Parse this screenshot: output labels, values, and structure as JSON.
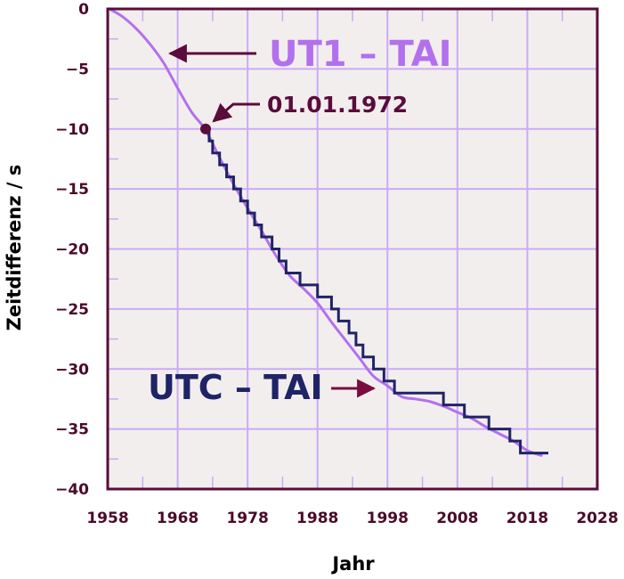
{
  "chart_data": {
    "type": "line",
    "title": "",
    "xlabel": "Jahr",
    "ylabel": "Zeitdifferenz / s",
    "xlim": [
      1958,
      2028
    ],
    "ylim": [
      -40,
      0
    ],
    "xticks": [
      1958,
      1968,
      1978,
      1988,
      1998,
      2008,
      2018,
      2028
    ],
    "yticks": [
      0,
      -5,
      -10,
      -15,
      -20,
      -25,
      -30,
      -35,
      -40
    ],
    "xtick_labels": [
      "1958",
      "1968",
      "1978",
      "1988",
      "1998",
      "2008",
      "2018",
      "2028"
    ],
    "ytick_labels": [
      "0",
      "−5",
      "−10",
      "−15",
      "−20",
      "−25",
      "−30",
      "−35",
      "−40"
    ],
    "grid": true,
    "series": [
      {
        "name": "UT1 – TAI",
        "color": "#b370ee",
        "style": "smooth",
        "x": [
          1958.2,
          1960,
          1962,
          1964,
          1966,
          1968,
          1970,
          1972,
          1974,
          1976,
          1978,
          1980,
          1982,
          1984,
          1986,
          1988,
          1990,
          1992,
          1994,
          1996,
          1998,
          2000,
          2002,
          2004,
          2006,
          2008,
          2010,
          2012,
          2014,
          2016,
          2018,
          2020
        ],
        "y": [
          0,
          -0.6,
          -1.6,
          -2.9,
          -4.5,
          -6.6,
          -8.6,
          -10.1,
          -12.4,
          -14.6,
          -16.6,
          -18.5,
          -20.5,
          -22.2,
          -23.3,
          -24.5,
          -26.1,
          -27.6,
          -29.1,
          -30.6,
          -31.4,
          -32.3,
          -32.5,
          -32.7,
          -33.1,
          -33.6,
          -34.1,
          -34.8,
          -35.4,
          -36.0,
          -36.8,
          -37.2
        ]
      },
      {
        "name": "UTC – TAI",
        "color": "#1e2466",
        "style": "step",
        "x": [
          1972.0,
          1972.5,
          1973.0,
          1974.0,
          1975.0,
          1976.0,
          1977.0,
          1978.0,
          1979.0,
          1980.0,
          1981.5,
          1982.5,
          1983.5,
          1985.5,
          1988.0,
          1990.0,
          1991.0,
          1992.5,
          1993.5,
          1994.5,
          1996.0,
          1997.5,
          1999.0,
          2006.0,
          2009.0,
          2012.5,
          2015.5,
          2017.0,
          2021.0
        ],
        "y": [
          -10,
          -11,
          -12,
          -13,
          -14,
          -15,
          -16,
          -17,
          -18,
          -19,
          -20,
          -21,
          -22,
          -23,
          -24,
          -25,
          -26,
          -27,
          -28,
          -29,
          -30,
          -31,
          -32,
          -33,
          -34,
          -35,
          -36,
          -37,
          -37
        ]
      }
    ],
    "marker": {
      "x": 1972.0,
      "y": -10,
      "color": "#5a0c3a"
    },
    "annotations": [
      {
        "text": "UT1 – TAI",
        "color": "#b370ee",
        "arrow_color": "#5a0c3a"
      },
      {
        "text": "01.01.1972",
        "color": "#5a0c3a",
        "arrow_color": "#5a0c3a"
      },
      {
        "text": "UTC – TAI",
        "color": "#1e2466",
        "arrow_color": "#7a0c40"
      }
    ]
  },
  "colors": {
    "plot_background": "#f3eeee",
    "grid": "#c9acf5",
    "frame": "#5a0c3a"
  }
}
